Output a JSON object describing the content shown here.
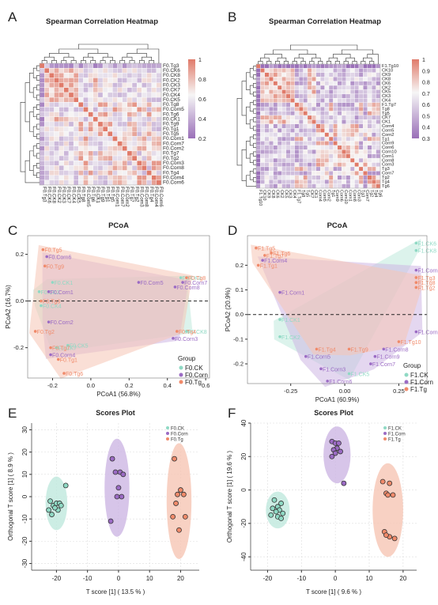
{
  "figure": {
    "panel_letters": [
      "A",
      "B",
      "C",
      "D",
      "E",
      "F"
    ],
    "colors": {
      "ck": "#8fd9c4",
      "corn": "#9b6bc4",
      "tg": "#f08a6a",
      "heat_high": "#e07b6a",
      "heat_mid": "#f6f6f6",
      "heat_low": "#9a6fb8",
      "ck_fill": "#bfe9dd",
      "corn_fill": "#cdb6e3",
      "tg_fill": "#f6c5b4"
    }
  },
  "chart_data": [
    {
      "panel": "A",
      "type": "heatmap",
      "title": "Spearman Correlation Heatmap",
      "row_labels": [
        "F0.Tg3",
        "F0.CK6",
        "F0.CK8",
        "F0.CK2",
        "F0.CK3",
        "F0.CK7",
        "F0.CK4",
        "F0.CK5",
        "F0.Tg8",
        "F0.Corn5",
        "F0.Tg6",
        "F0.CK1",
        "F0.Tg9",
        "F0.Tg1",
        "F0.Tg5",
        "F0.Corn1",
        "F0.Corn7",
        "F0.Corn2",
        "F0.Tg7",
        "F0.Tg2",
        "F0.Corn3",
        "F0.Corn8",
        "F0.Tg4",
        "F0.Corn4",
        "F0.Corn6"
      ],
      "colorbar_ticks": [
        "1",
        "0.8",
        "0.6",
        "0.4",
        "0.2"
      ],
      "color_range": [
        0.1,
        1
      ]
    },
    {
      "panel": "B",
      "type": "heatmap",
      "title": "Spearman Correlation Heatmap",
      "row_labels": [
        "F1.Tg10",
        "CK10",
        "CK9",
        "CK8",
        "CK6",
        "CK2",
        "CK5",
        "CK3",
        "CK4",
        "F1.Tg7",
        "Tg8",
        "Tg5",
        "CK7",
        "CK1",
        "Corn4",
        "Corn5",
        "Corn2",
        "Tg1",
        "Corn9",
        "Corn6",
        "Corn10",
        "Corn1",
        "Corn8",
        "Corn3",
        "Tg3",
        "Corn7",
        "Tg2",
        "Tg4",
        "Tg6"
      ],
      "colorbar_ticks": [
        "1",
        "0.9",
        "0.8",
        "0.7",
        "0.6",
        "0.5",
        "0.4",
        "0.3"
      ],
      "color_range": [
        0.25,
        1
      ]
    },
    {
      "panel": "C",
      "type": "scatter",
      "title": "PCoA",
      "xlabel": "PCoA1 (56.8%)",
      "ylabel": "PCoA2 (16.7%)",
      "xlim": [
        -0.33,
        0.62
      ],
      "ylim": [
        -0.33,
        0.28
      ],
      "xticks": [
        "-0.2",
        "0.0",
        "0.2",
        "0.4",
        "0.6"
      ],
      "yticks": [
        "0.2",
        "0.0",
        "-0.2"
      ],
      "legend_title": "Group",
      "series": [
        {
          "name": "F0.CK",
          "key": "ck",
          "points": [
            {
              "label": "F0.CK3",
              "x": 0.47,
              "y": 0.1
            },
            {
              "label": "F0.CK1",
              "x": -0.2,
              "y": 0.08
            },
            {
              "label": "F0.CK2",
              "x": -0.27,
              "y": 0.04
            },
            {
              "label": "F0.CK5",
              "x": -0.12,
              "y": -0.19
            },
            {
              "label": "F0.CK7",
              "x": -0.18,
              "y": -0.2
            },
            {
              "label": "F0.CK8",
              "x": 0.5,
              "y": -0.13
            },
            {
              "label": "F0.CK4",
              "x": -0.26,
              "y": -0.02
            }
          ]
        },
        {
          "name": "F0.Corn",
          "key": "corn",
          "points": [
            {
              "label": "F0.Corn6",
              "x": -0.23,
              "y": 0.19
            },
            {
              "label": "F0.Corn1",
              "x": -0.22,
              "y": 0.04
            },
            {
              "label": "F0.Corn5",
              "x": 0.25,
              "y": 0.08
            },
            {
              "label": "F0.Corn7",
              "x": 0.48,
              "y": 0.08
            },
            {
              "label": "F0.Corn8",
              "x": 0.44,
              "y": 0.06
            },
            {
              "label": "F0.Corn3",
              "x": 0.43,
              "y": -0.16
            },
            {
              "label": "F0.Corn2",
              "x": -0.22,
              "y": -0.09
            },
            {
              "label": "F0.Corn4",
              "x": -0.21,
              "y": -0.23
            }
          ]
        },
        {
          "name": "F0.Tg",
          "key": "tg",
          "points": [
            {
              "label": "F0.Tg5",
              "x": -0.25,
              "y": 0.22
            },
            {
              "label": "F0.Tg9",
              "x": -0.24,
              "y": 0.15
            },
            {
              "label": "F0.Tg3",
              "x": -0.26,
              "y": 0.0
            },
            {
              "label": "F0.Tg2",
              "x": -0.29,
              "y": -0.13
            },
            {
              "label": "F0.Tg7",
              "x": -0.21,
              "y": -0.2
            },
            {
              "label": "F0.Tg1",
              "x": -0.17,
              "y": -0.25
            },
            {
              "label": "F0.Tg6",
              "x": -0.14,
              "y": -0.31
            },
            {
              "label": "F0.Tg4",
              "x": 0.45,
              "y": -0.13
            },
            {
              "label": "F0.Tg8",
              "x": 0.5,
              "y": 0.1
            }
          ]
        }
      ]
    },
    {
      "panel": "D",
      "type": "scatter",
      "title": "PCoA",
      "xlabel": "PCoA1 (60.9%)",
      "ylabel": "PCoA2 (20.9%)",
      "xlim": [
        -0.45,
        0.38
      ],
      "ylim": [
        -0.28,
        0.32
      ],
      "xticks": [
        "-0.25",
        "0.00",
        "0.25"
      ],
      "yticks": [
        "0.2",
        "0.1",
        "0.0",
        "-0.1",
        "-0.2"
      ],
      "legend_title": "Group",
      "series": [
        {
          "name": "F1.CK",
          "key": "ck",
          "points": [
            {
              "label": "F1.CK6",
              "x": 0.33,
              "y": 0.29
            },
            {
              "label": "F1.CK8",
              "x": 0.33,
              "y": 0.26
            },
            {
              "label": "F1.CK5",
              "x": 0.02,
              "y": -0.24
            },
            {
              "label": "F1.CK2",
              "x": -0.3,
              "y": -0.09
            },
            {
              "label": "F1.CK1",
              "x": -0.3,
              "y": -0.02
            }
          ]
        },
        {
          "name": "F1.Corn",
          "key": "corn",
          "points": [
            {
              "label": "F1.Corn4",
              "x": -0.38,
              "y": 0.22
            },
            {
              "label": "F1.Corn1",
              "x": -0.3,
              "y": 0.09
            },
            {
              "label": "F1.Corn10",
              "x": 0.33,
              "y": 0.18
            },
            {
              "label": "F1.Corn2",
              "x": 0.33,
              "y": -0.07
            },
            {
              "label": "F1.Corn8",
              "x": 0.18,
              "y": -0.14
            },
            {
              "label": "F1.Corn9",
              "x": 0.14,
              "y": -0.17
            },
            {
              "label": "F1.Corn7",
              "x": 0.12,
              "y": -0.2
            },
            {
              "label": "F1.Corn5",
              "x": -0.18,
              "y": -0.17
            },
            {
              "label": "F1.Corn3",
              "x": -0.11,
              "y": -0.22
            },
            {
              "label": "F1.Corn6",
              "x": -0.08,
              "y": -0.27
            }
          ]
        },
        {
          "name": "F1.Tg",
          "key": "tg",
          "points": [
            {
              "label": "F1.Tg5",
              "x": -0.41,
              "y": 0.27
            },
            {
              "label": "F1.Tg6",
              "x": -0.34,
              "y": 0.25
            },
            {
              "label": "F1.Tg7",
              "x": -0.37,
              "y": 0.24
            },
            {
              "label": "F1.Tg1",
              "x": -0.4,
              "y": 0.2
            },
            {
              "label": "F1.Tg3",
              "x": 0.33,
              "y": 0.15
            },
            {
              "label": "F1.Tg8",
              "x": 0.33,
              "y": 0.13
            },
            {
              "label": "F1.Tg2",
              "x": 0.33,
              "y": 0.11
            },
            {
              "label": "F1.Tg10",
              "x": 0.25,
              "y": -0.11
            },
            {
              "label": "F1.Tg9",
              "x": 0.02,
              "y": -0.14
            },
            {
              "label": "F1.Tg4",
              "x": -0.13,
              "y": -0.14
            }
          ]
        }
      ]
    },
    {
      "panel": "E",
      "type": "scatter",
      "title": "Scores Plot",
      "xlabel": "T score [1] ( 13.5 % )",
      "ylabel": "Orthogonal T score [1] ( 8.9 % )",
      "xlim": [
        -28,
        26
      ],
      "ylim": [
        -33,
        33
      ],
      "xticks": [
        -20,
        -10,
        0,
        10,
        20
      ],
      "xtick_labels": [
        "-20",
        "-10",
        "0",
        "10",
        "20"
      ],
      "yticks": [
        30,
        20,
        10,
        0,
        -10,
        -20,
        -30
      ],
      "ytick_labels": [
        "30",
        "20",
        "10",
        "0",
        "-10",
        "-20",
        "-30"
      ],
      "series": [
        {
          "name": "F0.CK",
          "key": "ck",
          "x": [
            -22,
            -21,
            -20,
            -19.5,
            -21.5,
            -20.5,
            -19,
            -18.5,
            -22.5,
            -17
          ],
          "y": [
            -2,
            -4,
            -3,
            -6,
            -8,
            -5,
            -3,
            -4,
            -6,
            5
          ],
          "ellipse": {
            "cx": -20,
            "cy": -3,
            "rx": 3.5,
            "ry": 12
          }
        },
        {
          "name": "F0.Corn",
          "key": "corn",
          "x": [
            -2,
            -1,
            0.5,
            1.5,
            0,
            1,
            -0.5,
            -2.5
          ],
          "y": [
            17,
            11,
            11,
            10,
            4,
            0,
            0,
            -11
          ],
          "ellipse": {
            "cx": -0.5,
            "cy": 4,
            "rx": 4,
            "ry": 22
          }
        },
        {
          "name": "F0.Tg",
          "key": "tg",
          "x": [
            18,
            20,
            19,
            21,
            18.5,
            17.5,
            21.5,
            19.5
          ],
          "y": [
            17,
            3,
            1,
            1,
            -3,
            -9,
            -9,
            -15
          ],
          "ellipse": {
            "cx": 19.5,
            "cy": -2,
            "rx": 4,
            "ry": 26
          }
        }
      ]
    },
    {
      "panel": "F",
      "type": "scatter",
      "title": "Scores Plot",
      "xlabel": "T score [1] ( 9.6 % )",
      "ylabel": "Orthogonal T score [1] ( 19.6 % )",
      "xlim": [
        -25,
        24
      ],
      "ylim": [
        -48,
        40
      ],
      "xticks": [
        -20,
        -10,
        0,
        10,
        20
      ],
      "xtick_labels": [
        "-20",
        "-10",
        "0",
        "10",
        "20"
      ],
      "yticks": [
        40,
        20,
        0,
        -20,
        -40
      ],
      "ytick_labels": [
        "40",
        "20",
        "0",
        "-20",
        "-40"
      ],
      "series": [
        {
          "name": "F1.CK",
          "key": "ck",
          "x": [
            -18,
            -16,
            -17,
            -18.5,
            -16.5,
            -17.5,
            -15.5,
            -19,
            -17,
            -16
          ],
          "y": [
            -6,
            -8,
            -10,
            -11,
            -12,
            -13,
            -14,
            -15,
            -16,
            -17
          ],
          "ellipse": {
            "cx": -17,
            "cy": -12,
            "rx": 3.5,
            "ry": 11
          }
        },
        {
          "name": "F1.Corn",
          "key": "corn",
          "x": [
            -1,
            0,
            1,
            0.5,
            -0.5,
            1.5,
            0,
            -1,
            2.5
          ],
          "y": [
            29,
            28,
            28,
            25,
            24,
            23,
            22,
            20,
            4
          ],
          "ellipse": {
            "cx": 0.5,
            "cy": 21,
            "rx": 4,
            "ry": 17
          }
        },
        {
          "name": "F1.Tg",
          "key": "tg",
          "x": [
            14,
            16,
            15,
            17,
            15.5,
            14.5,
            16,
            17.5,
            15
          ],
          "y": [
            5,
            4,
            -2,
            -3,
            -3,
            -25,
            -28,
            -29,
            -27
          ],
          "ellipse": {
            "cx": 15.5,
            "cy": -12,
            "rx": 4.5,
            "ry": 28
          }
        }
      ]
    }
  ]
}
